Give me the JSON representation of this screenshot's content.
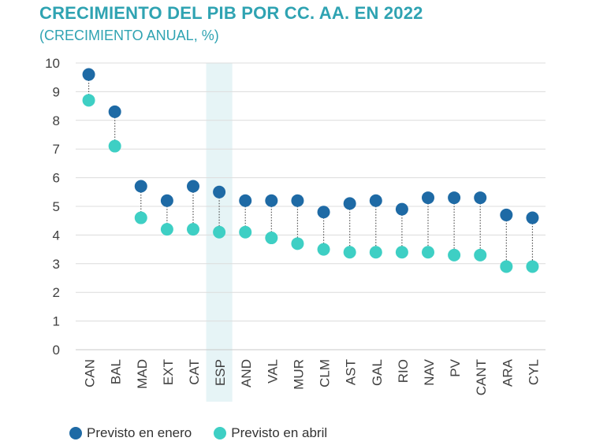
{
  "chart_data": {
    "type": "scatter",
    "title": "CRECIMIENTO DEL PIB POR CC. AA. EN 2022",
    "subtitle": "(CRECIMIENTO ANUAL, %)",
    "categories": [
      "CAN",
      "BAL",
      "MAD",
      "EXT",
      "CAT",
      "ESP",
      "AND",
      "VAL",
      "MUR",
      "CLM",
      "AST",
      "GAL",
      "RIO",
      "NAV",
      "PV",
      "CANT",
      "ARA",
      "CYL"
    ],
    "highlighted_category": "ESP",
    "y_ticks": [
      "0",
      "1",
      "2",
      "3",
      "4",
      "5",
      "6",
      "7",
      "8",
      "9",
      "10"
    ],
    "ylim": [
      0,
      10
    ],
    "grid": true,
    "legend_position": "bottom-left",
    "series": [
      {
        "name": "Previsto en enero",
        "color": "#1e6aa5",
        "values": [
          9.6,
          8.3,
          5.7,
          5.2,
          5.7,
          5.5,
          5.2,
          5.2,
          5.2,
          4.8,
          5.1,
          5.2,
          4.9,
          5.3,
          5.3,
          5.3,
          4.7,
          4.6
        ]
      },
      {
        "name": "Previsto en abril",
        "color": "#3ecfc4",
        "values": [
          8.7,
          7.1,
          4.6,
          4.2,
          4.2,
          4.1,
          4.1,
          3.9,
          3.7,
          3.5,
          3.4,
          3.4,
          3.4,
          3.4,
          3.3,
          3.3,
          2.9,
          2.9
        ]
      }
    ]
  }
}
